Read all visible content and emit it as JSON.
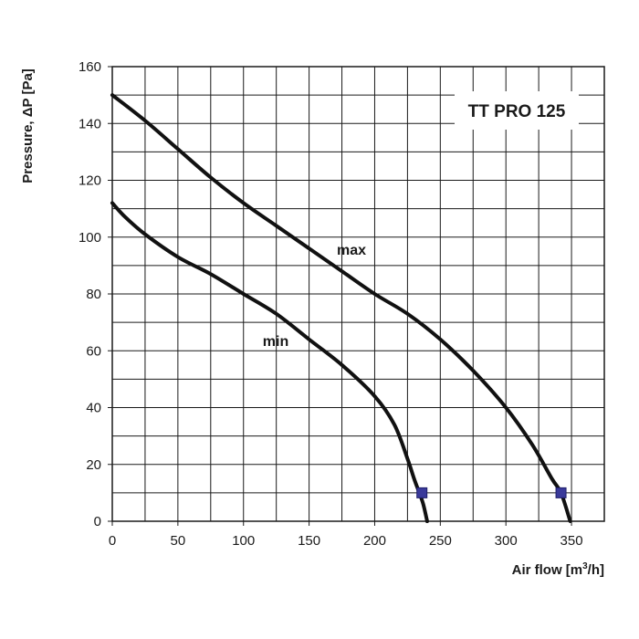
{
  "chart_data": {
    "type": "line",
    "title": "TT PRO 125",
    "xlabel_main": "Air flow [m",
    "xlabel_sup": "3",
    "xlabel_end": "/h]",
    "ylabel": "Pressure, ΔP [Pa]",
    "xlim": [
      0,
      375
    ],
    "ylim": [
      0,
      160
    ],
    "x_ticks": [
      0,
      50,
      100,
      150,
      200,
      250,
      300,
      350
    ],
    "y_ticks": [
      0,
      20,
      40,
      60,
      80,
      100,
      120,
      140,
      160
    ],
    "x_grid_step": 25,
    "y_grid_step": 10,
    "series": [
      {
        "name": "max",
        "x": [
          0,
          25,
          50,
          75,
          100,
          125,
          150,
          175,
          200,
          225,
          250,
          275,
          300,
          320,
          335,
          342,
          349
        ],
        "y": [
          150,
          141,
          131,
          121,
          112,
          104,
          96,
          88,
          80,
          73,
          64,
          53,
          40,
          27,
          15,
          10,
          0
        ],
        "marker": {
          "x": 342,
          "y": 10
        }
      },
      {
        "name": "min",
        "x": [
          0,
          10,
          25,
          50,
          75,
          100,
          125,
          150,
          175,
          200,
          215,
          225,
          230,
          234,
          237,
          240
        ],
        "y": [
          112,
          107,
          101,
          93,
          87,
          80,
          73,
          64,
          55,
          44,
          34,
          22,
          15,
          10,
          6,
          0
        ],
        "marker": {
          "x": 236,
          "y": 10
        }
      }
    ],
    "marker_color": "#3a3a9a"
  }
}
